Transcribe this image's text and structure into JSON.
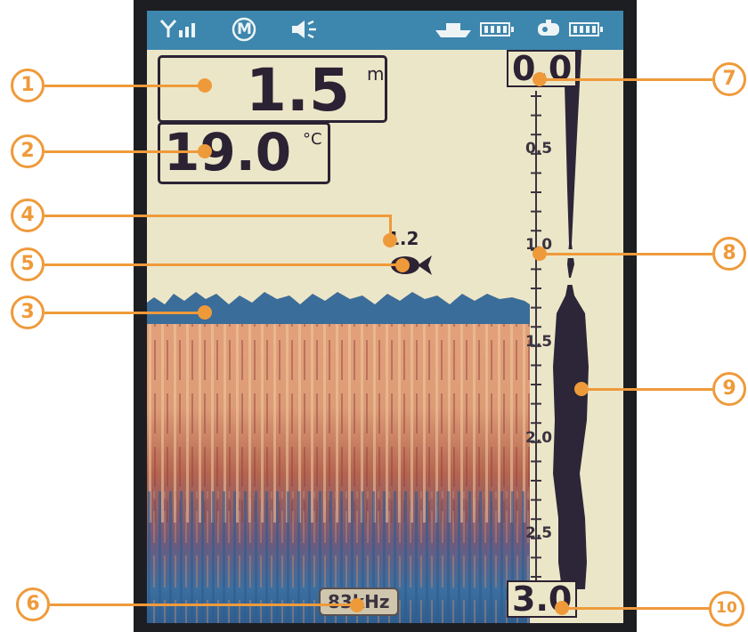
{
  "status_bar": {
    "icons": [
      "signal-icon",
      "mode-icon",
      "speaker-icon",
      "boat-icon",
      "sonar-battery-icon",
      "remote-icon",
      "remote-battery-icon"
    ],
    "mode_letter": "M"
  },
  "readouts": {
    "depth_value": "1.5",
    "depth_unit": "m",
    "temperature_value": "19.0",
    "temperature_unit": "°C"
  },
  "fish": {
    "depth_label": "1.2",
    "icon": "fish-icon"
  },
  "depth_scale": {
    "top": "0.0",
    "ticks": [
      "0.5",
      "1.0",
      "1.5",
      "2.0",
      "2.5"
    ],
    "bottom": "3.0"
  },
  "frequency": "83kHz",
  "callouts": [
    "1",
    "2",
    "3",
    "4",
    "5",
    "6",
    "7",
    "8",
    "9",
    "10"
  ],
  "colors": {
    "status_bar": "#3d86ad",
    "screen_bg": "#ece6c8",
    "callout": "#ef9a3a",
    "sonar_strong": "#e1a27b",
    "sonar_mid": "#a9544a",
    "sonar_weak": "#3b6fa0"
  }
}
